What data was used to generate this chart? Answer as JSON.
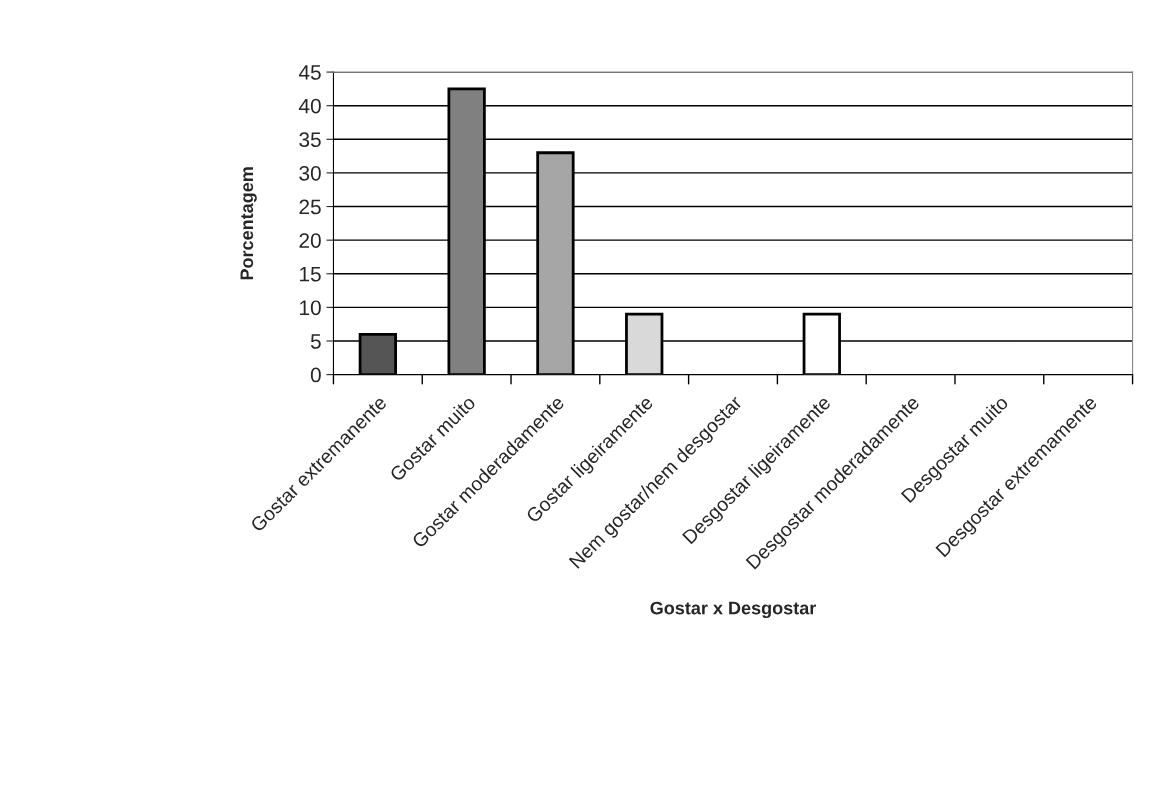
{
  "chart_data": {
    "type": "bar",
    "xlabel": "Gostar x Desgostar",
    "ylabel": "Porcentagem",
    "categories": [
      "Gostar extremanente",
      "Gostar muito",
      "Gostar moderadamente",
      "Gostar ligeiramente",
      "Nem gostar/nem desgostar",
      "Desgostar ligeiramente",
      "Desgostar moderadamente",
      "Desgostar muito",
      "Desgostar extremamente"
    ],
    "values": [
      6,
      42.5,
      33,
      9,
      0,
      9,
      0,
      0,
      0
    ],
    "colors": [
      "#555555",
      "#808080",
      "#a6a6a6",
      "#d9d9d9",
      "#ffffff",
      "#ffffff",
      "#ffffff",
      "#ffffff",
      "#ffffff"
    ],
    "ylim": [
      0,
      45
    ],
    "yticks": [
      0,
      5,
      10,
      15,
      20,
      25,
      30,
      35,
      40,
      45
    ],
    "grid": "y",
    "legend": false
  }
}
